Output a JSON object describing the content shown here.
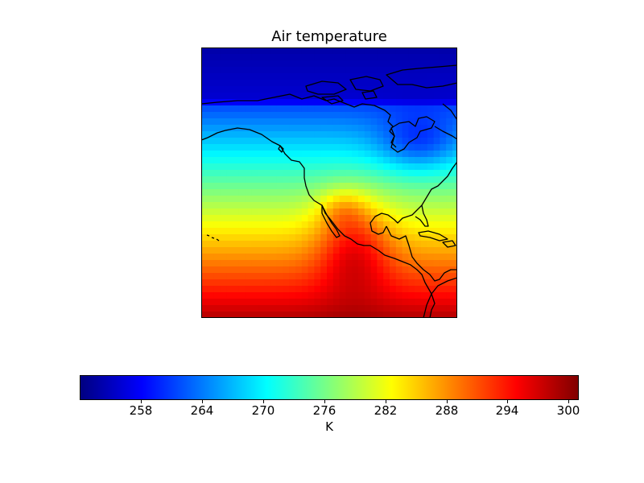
{
  "figure": {
    "title": "Air temperature"
  },
  "colorbar": {
    "unit_label": "K",
    "vmin": 252,
    "vmax": 301,
    "ticks": [
      258,
      264,
      270,
      276,
      282,
      288,
      294,
      300
    ],
    "tick_labels": [
      "258",
      "264",
      "270",
      "276",
      "282",
      "288",
      "294",
      "300"
    ],
    "colormap": [
      "#00007f",
      "#0000ff",
      "#007fff",
      "#00ffff",
      "#7fff7f",
      "#ffff00",
      "#ff7f00",
      "#ff0000",
      "#7f0000"
    ]
  },
  "colors": {
    "coastline": "#000000"
  }
}
